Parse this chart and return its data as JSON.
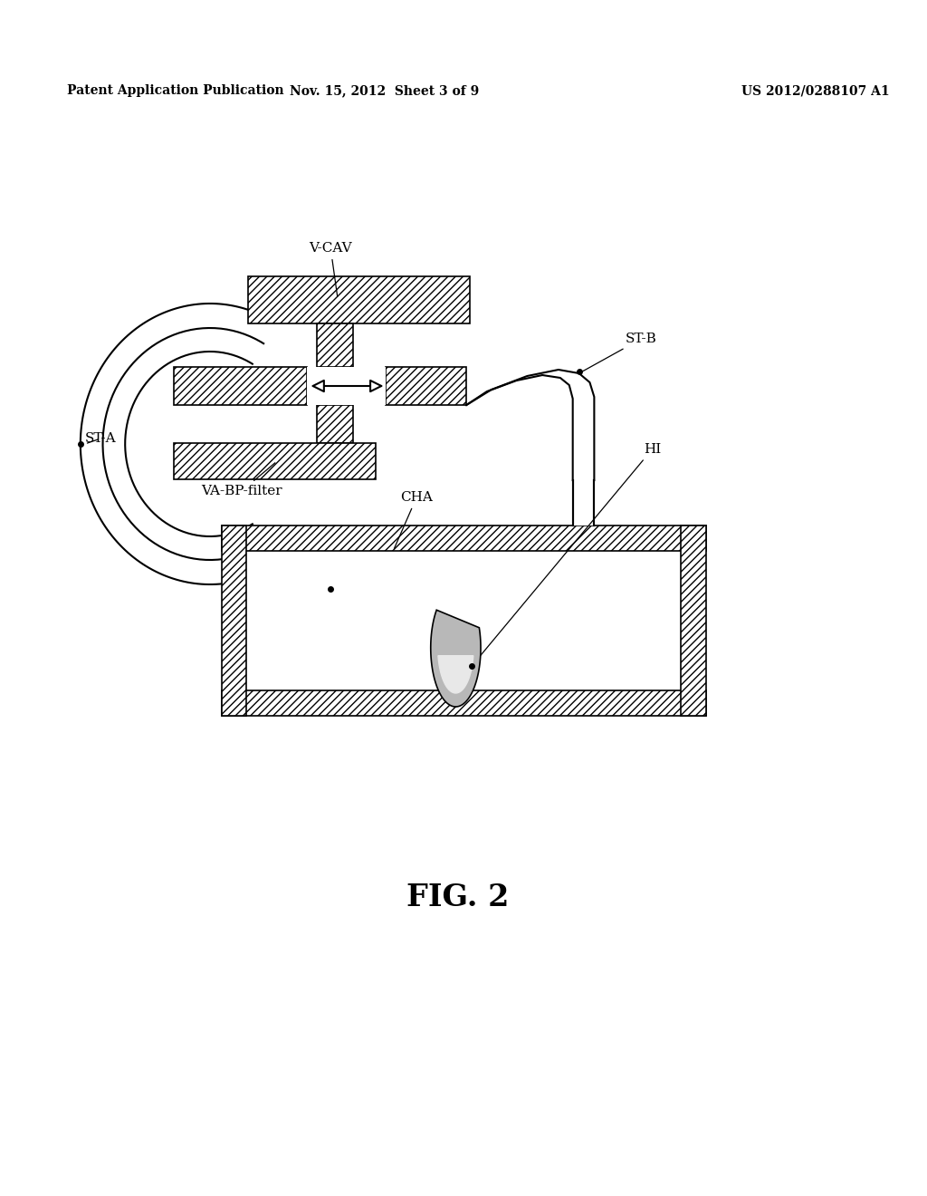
{
  "background_color": "#ffffff",
  "header_left": "Patent Application Publication",
  "header_mid": "Nov. 15, 2012  Sheet 3 of 9",
  "header_right": "US 2012/0288107 A1",
  "fig_label": "FIG. 2"
}
